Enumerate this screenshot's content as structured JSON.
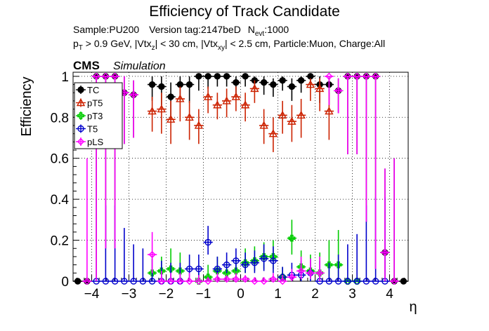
{
  "figure": {
    "title": "Efficiency of Track Candidate",
    "info_line1": {
      "sample": "Sample:PU200",
      "version": "Version tag:2147beD",
      "nevt_main": "N",
      "nevt_sub": "evt",
      "nevt_value": ":1000"
    },
    "info_line2": {
      "p": "p",
      "p_sub": "T",
      "pt_text": " > 0.9 GeV, |Vtx",
      "z_sub": "z",
      "z_text": "| < 30 cm, |Vtx",
      "xy_sub": "xy",
      "xy_text": "| < 2.5 cm, Particle:Muon, Charge:All"
    },
    "cms_label": "CMS",
    "simulation_label": "Simulation"
  },
  "chart_data": {
    "type": "scatter",
    "title": "Efficiency of Track Candidate",
    "xlabel": "η",
    "ylabel": "Efficiency",
    "xlim": [
      -4.5,
      4.5
    ],
    "ylim": [
      0,
      1.02
    ],
    "xticks": [
      -4,
      -3,
      -2,
      -1,
      0,
      1,
      2,
      3,
      4
    ],
    "xtick_labels": [
      "−4",
      "−3",
      "−2",
      "−1",
      "0",
      "1",
      "2",
      "3",
      "4"
    ],
    "yticks": [
      0,
      0.2,
      0.4,
      0.6,
      0.8,
      1
    ],
    "ytick_labels": [
      "0",
      "0.2",
      "0.4",
      "0.6",
      "0.8",
      "1"
    ],
    "grid": true,
    "legend_position": "top-left",
    "bin_half_width": 0.125,
    "series": [
      {
        "name": "TC",
        "color": "#000000",
        "marker": "circle-filled",
        "points": [
          {
            "x": -4.375,
            "y": 0.0,
            "lo": 0.0,
            "hi": 0.0
          },
          {
            "x": -4.125,
            "y": 0.0,
            "lo": 0.0,
            "hi": 0.0
          },
          {
            "x": -3.875,
            "y": 1.0,
            "lo": 0.0,
            "hi": 1.0
          },
          {
            "x": -3.625,
            "y": 1.0,
            "lo": 0.16,
            "hi": 1.0
          },
          {
            "x": -3.375,
            "y": 1.0,
            "lo": 0.16,
            "hi": 1.0
          },
          {
            "x": -3.125,
            "y": 0.92,
            "lo": 0.67,
            "hi": 1.0
          },
          {
            "x": -2.875,
            "y": 0.91,
            "lo": 0.7,
            "hi": 0.98
          },
          {
            "x": -2.375,
            "y": 0.96,
            "lo": 0.88,
            "hi": 1.0
          },
          {
            "x": -2.125,
            "y": 0.95,
            "lo": 0.86,
            "hi": 1.0
          },
          {
            "x": -1.875,
            "y": 0.9,
            "lo": 0.79,
            "hi": 0.97
          },
          {
            "x": -1.625,
            "y": 0.96,
            "lo": 0.88,
            "hi": 1.0
          },
          {
            "x": -1.375,
            "y": 0.96,
            "lo": 0.87,
            "hi": 1.0
          },
          {
            "x": -1.125,
            "y": 1.0,
            "lo": 0.93,
            "hi": 1.0
          },
          {
            "x": -0.875,
            "y": 1.0,
            "lo": 0.94,
            "hi": 1.0
          },
          {
            "x": -0.625,
            "y": 1.0,
            "lo": 0.95,
            "hi": 1.0
          },
          {
            "x": -0.375,
            "y": 1.0,
            "lo": 0.95,
            "hi": 1.0
          },
          {
            "x": -0.125,
            "y": 0.97,
            "lo": 0.91,
            "hi": 1.0
          },
          {
            "x": 0.125,
            "y": 1.0,
            "lo": 0.95,
            "hi": 1.0
          },
          {
            "x": 0.375,
            "y": 0.98,
            "lo": 0.93,
            "hi": 1.0
          },
          {
            "x": 0.625,
            "y": 0.97,
            "lo": 0.91,
            "hi": 1.0
          },
          {
            "x": 0.875,
            "y": 0.96,
            "lo": 0.9,
            "hi": 0.99
          },
          {
            "x": 1.125,
            "y": 0.98,
            "lo": 0.93,
            "hi": 1.0
          },
          {
            "x": 1.375,
            "y": 0.95,
            "lo": 0.88,
            "hi": 0.99
          },
          {
            "x": 1.625,
            "y": 0.98,
            "lo": 0.92,
            "hi": 1.0
          },
          {
            "x": 1.875,
            "y": 1.0,
            "lo": 0.94,
            "hi": 1.0
          },
          {
            "x": 2.125,
            "y": 0.96,
            "lo": 0.87,
            "hi": 1.0
          },
          {
            "x": 2.375,
            "y": 0.96,
            "lo": 0.86,
            "hi": 1.0
          },
          {
            "x": 2.625,
            "y": 0.93,
            "lo": 0.82,
            "hi": 0.99
          },
          {
            "x": 2.875,
            "y": 1.0,
            "lo": 0.62,
            "hi": 1.0
          },
          {
            "x": 3.125,
            "y": 1.0,
            "lo": 0.62,
            "hi": 1.0
          },
          {
            "x": 3.375,
            "y": 1.0,
            "lo": 0.29,
            "hi": 1.0
          },
          {
            "x": 3.625,
            "y": 1.0,
            "lo": 0.06,
            "hi": 1.0
          },
          {
            "x": 3.875,
            "y": 0.14,
            "lo": 0.0,
            "hi": 0.55
          },
          {
            "x": 4.125,
            "y": 0.0,
            "lo": 0.0,
            "hi": 0.6
          },
          {
            "x": 4.375,
            "y": 0.0,
            "lo": 0.0,
            "hi": 0.0
          }
        ]
      },
      {
        "name": "pT5",
        "color": "#cc2200",
        "marker": "triangle-open",
        "points": [
          {
            "x": -2.375,
            "y": 0.83,
            "lo": 0.73,
            "hi": 0.9
          },
          {
            "x": -2.125,
            "y": 0.84,
            "lo": 0.72,
            "hi": 0.92
          },
          {
            "x": -1.875,
            "y": 0.79,
            "lo": 0.67,
            "hi": 0.88
          },
          {
            "x": -1.625,
            "y": 0.89,
            "lo": 0.78,
            "hi": 0.95
          },
          {
            "x": -1.375,
            "y": 0.8,
            "lo": 0.69,
            "hi": 0.88
          },
          {
            "x": -1.125,
            "y": 0.76,
            "lo": 0.67,
            "hi": 0.84
          },
          {
            "x": -0.875,
            "y": 0.9,
            "lo": 0.82,
            "hi": 0.95
          },
          {
            "x": -0.625,
            "y": 0.86,
            "lo": 0.79,
            "hi": 0.92
          },
          {
            "x": -0.375,
            "y": 0.88,
            "lo": 0.8,
            "hi": 0.94
          },
          {
            "x": -0.125,
            "y": 0.9,
            "lo": 0.83,
            "hi": 0.95
          },
          {
            "x": 0.125,
            "y": 0.86,
            "lo": 0.78,
            "hi": 0.92
          },
          {
            "x": 0.375,
            "y": 0.94,
            "lo": 0.87,
            "hi": 0.98
          },
          {
            "x": 0.625,
            "y": 0.76,
            "lo": 0.67,
            "hi": 0.84
          },
          {
            "x": 0.875,
            "y": 0.72,
            "lo": 0.63,
            "hi": 0.8
          },
          {
            "x": 1.125,
            "y": 0.81,
            "lo": 0.72,
            "hi": 0.88
          },
          {
            "x": 1.375,
            "y": 0.78,
            "lo": 0.68,
            "hi": 0.86
          },
          {
            "x": 1.625,
            "y": 0.81,
            "lo": 0.7,
            "hi": 0.89
          },
          {
            "x": 1.875,
            "y": 0.96,
            "lo": 0.88,
            "hi": 0.99
          },
          {
            "x": 2.125,
            "y": 0.94,
            "lo": 0.83,
            "hi": 0.99
          },
          {
            "x": 2.375,
            "y": 0.83,
            "lo": 0.69,
            "hi": 0.92
          }
        ]
      },
      {
        "name": "pT3",
        "color": "#00cc00",
        "marker": "cross-open",
        "points": [
          {
            "x": -2.375,
            "y": 0.04,
            "lo": 0.0,
            "hi": 0.11
          },
          {
            "x": -2.125,
            "y": 0.05,
            "lo": 0.0,
            "hi": 0.12
          },
          {
            "x": -1.875,
            "y": 0.06,
            "lo": 0.01,
            "hi": 0.16
          },
          {
            "x": -1.625,
            "y": 0.05,
            "lo": 0.01,
            "hi": 0.14
          },
          {
            "x": -1.125,
            "y": 0.0,
            "lo": 0.0,
            "hi": 0.04
          },
          {
            "x": -0.875,
            "y": 0.02,
            "lo": 0.0,
            "hi": 0.08
          },
          {
            "x": -0.625,
            "y": 0.05,
            "lo": 0.01,
            "hi": 0.12
          },
          {
            "x": -0.375,
            "y": 0.04,
            "lo": 0.01,
            "hi": 0.1
          },
          {
            "x": -0.125,
            "y": 0.05,
            "lo": 0.01,
            "hi": 0.11
          },
          {
            "x": 0.125,
            "y": 0.09,
            "lo": 0.04,
            "hi": 0.16
          },
          {
            "x": 0.375,
            "y": 0.1,
            "lo": 0.05,
            "hi": 0.17
          },
          {
            "x": 0.625,
            "y": 0.12,
            "lo": 0.06,
            "hi": 0.19
          },
          {
            "x": 0.875,
            "y": 0.12,
            "lo": 0.06,
            "hi": 0.2
          },
          {
            "x": 1.125,
            "y": 0.02,
            "lo": 0.0,
            "hi": 0.07
          },
          {
            "x": 1.375,
            "y": 0.21,
            "lo": 0.13,
            "hi": 0.3
          },
          {
            "x": 1.625,
            "y": 0.07,
            "lo": 0.02,
            "hi": 0.15
          },
          {
            "x": 1.875,
            "y": 0.05,
            "lo": 0.01,
            "hi": 0.13
          },
          {
            "x": 2.125,
            "y": 0.04,
            "lo": 0.0,
            "hi": 0.14
          },
          {
            "x": 2.375,
            "y": 0.08,
            "lo": 0.01,
            "hi": 0.2
          },
          {
            "x": 2.625,
            "y": 0.08,
            "lo": 0.01,
            "hi": 0.25
          },
          {
            "x": 2.875,
            "y": 0.0,
            "lo": 0.0,
            "hi": 0.0
          },
          {
            "x": 3.125,
            "y": 0.0,
            "lo": 0.0,
            "hi": 0.0
          }
        ]
      },
      {
        "name": "T5",
        "color": "#0000cc",
        "marker": "circle-open",
        "points": [
          {
            "x": -3.875,
            "y": 0.0,
            "lo": 0.0,
            "hi": 0.0
          },
          {
            "x": -3.625,
            "y": 0.0,
            "lo": 0.0,
            "hi": 0.37
          },
          {
            "x": -3.375,
            "y": 0.0,
            "lo": 0.0,
            "hi": 0.37
          },
          {
            "x": -3.125,
            "y": 0.0,
            "lo": 0.0,
            "hi": 0.26
          },
          {
            "x": -2.875,
            "y": 0.0,
            "lo": 0.0,
            "hi": 0.18
          },
          {
            "x": -2.625,
            "y": 0.0,
            "lo": 0.0,
            "hi": 0.16
          },
          {
            "x": -2.375,
            "y": 0.0,
            "lo": 0.0,
            "hi": 0.11
          },
          {
            "x": -2.125,
            "y": 0.0,
            "lo": 0.0,
            "hi": 0.1
          },
          {
            "x": -1.875,
            "y": 0.0,
            "lo": 0.0,
            "hi": 0.09
          },
          {
            "x": -1.625,
            "y": 0.0,
            "lo": 0.0,
            "hi": 0.09
          },
          {
            "x": -1.375,
            "y": 0.06,
            "lo": 0.02,
            "hi": 0.13
          },
          {
            "x": -1.125,
            "y": 0.06,
            "lo": 0.02,
            "hi": 0.13
          },
          {
            "x": -0.875,
            "y": 0.19,
            "lo": 0.13,
            "hi": 0.27
          },
          {
            "x": -0.625,
            "y": 0.06,
            "lo": 0.02,
            "hi": 0.12
          },
          {
            "x": -0.375,
            "y": 0.08,
            "lo": 0.04,
            "hi": 0.14
          },
          {
            "x": -0.125,
            "y": 0.1,
            "lo": 0.05,
            "hi": 0.16
          },
          {
            "x": 0.125,
            "y": 0.08,
            "lo": 0.04,
            "hi": 0.14
          },
          {
            "x": 0.375,
            "y": 0.09,
            "lo": 0.04,
            "hi": 0.15
          },
          {
            "x": 0.625,
            "y": 0.11,
            "lo": 0.05,
            "hi": 0.18
          },
          {
            "x": 0.875,
            "y": 0.1,
            "lo": 0.04,
            "hi": 0.17
          },
          {
            "x": 1.125,
            "y": 0.02,
            "lo": 0.0,
            "hi": 0.07
          },
          {
            "x": 1.375,
            "y": 0.03,
            "lo": 0.0,
            "hi": 0.09
          },
          {
            "x": 1.625,
            "y": 0.03,
            "lo": 0.0,
            "hi": 0.1
          },
          {
            "x": 1.875,
            "y": 0.04,
            "lo": 0.0,
            "hi": 0.11
          },
          {
            "x": 2.125,
            "y": 0.0,
            "lo": 0.0,
            "hi": 0.1
          },
          {
            "x": 2.375,
            "y": 0.0,
            "lo": 0.0,
            "hi": 0.09
          },
          {
            "x": 2.625,
            "y": 0.0,
            "lo": 0.0,
            "hi": 0.13
          },
          {
            "x": 2.875,
            "y": 0.0,
            "lo": 0.0,
            "hi": 0.18
          },
          {
            "x": 3.125,
            "y": 0.0,
            "lo": 0.0,
            "hi": 0.23
          },
          {
            "x": 3.375,
            "y": 0.0,
            "lo": 0.0,
            "hi": 0.37
          },
          {
            "x": 3.625,
            "y": 0.0,
            "lo": 0.0,
            "hi": 0.41
          },
          {
            "x": 3.875,
            "y": 0.0,
            "lo": 0.0,
            "hi": 0.41
          }
        ]
      },
      {
        "name": "pLS",
        "color": "#ff00ff",
        "marker": "star-open",
        "points": [
          {
            "x": -4.125,
            "y": 0.0,
            "lo": 0.0,
            "hi": 0.6
          },
          {
            "x": -3.875,
            "y": 1.0,
            "lo": 0.0,
            "hi": 1.0
          },
          {
            "x": -3.625,
            "y": 1.0,
            "lo": 0.16,
            "hi": 1.0
          },
          {
            "x": -3.375,
            "y": 1.0,
            "lo": 0.16,
            "hi": 1.0
          },
          {
            "x": -3.125,
            "y": 0.92,
            "lo": 0.67,
            "hi": 1.0
          },
          {
            "x": -2.875,
            "y": 0.91,
            "lo": 0.7,
            "hi": 0.98
          },
          {
            "x": -2.375,
            "y": 0.13,
            "lo": 0.04,
            "hi": 0.24
          },
          {
            "x": -2.125,
            "y": 0.0,
            "lo": 0.0,
            "hi": 0.05
          },
          {
            "x": -1.875,
            "y": 0.0,
            "lo": 0.0,
            "hi": 0.04
          },
          {
            "x": -1.625,
            "y": 0.0,
            "lo": 0.0,
            "hi": 0.04
          },
          {
            "x": -1.375,
            "y": 0.0,
            "lo": 0.0,
            "hi": 0.04
          },
          {
            "x": -1.125,
            "y": 0.0,
            "lo": 0.0,
            "hi": 0.03
          },
          {
            "x": -0.875,
            "y": 0.0,
            "lo": 0.0,
            "hi": 0.02
          },
          {
            "x": -0.625,
            "y": 0.01,
            "lo": 0.0,
            "hi": 0.04
          },
          {
            "x": -0.375,
            "y": 0.01,
            "lo": 0.0,
            "hi": 0.03
          },
          {
            "x": -0.125,
            "y": 0.01,
            "lo": 0.0,
            "hi": 0.04
          },
          {
            "x": 0.125,
            "y": 0.01,
            "lo": 0.0,
            "hi": 0.03
          },
          {
            "x": 0.375,
            "y": 0.0,
            "lo": 0.0,
            "hi": 0.02
          },
          {
            "x": 0.625,
            "y": 0.0,
            "lo": 0.0,
            "hi": 0.02
          },
          {
            "x": 0.875,
            "y": 0.01,
            "lo": 0.0,
            "hi": 0.04
          },
          {
            "x": 1.125,
            "y": 0.0,
            "lo": 0.0,
            "hi": 0.03
          },
          {
            "x": 1.375,
            "y": 0.02,
            "lo": 0.0,
            "hi": 0.06
          },
          {
            "x": 1.625,
            "y": 0.05,
            "lo": 0.01,
            "hi": 0.12
          },
          {
            "x": 1.875,
            "y": 0.04,
            "lo": 0.01,
            "hi": 0.11
          },
          {
            "x": 2.125,
            "y": 0.04,
            "lo": 0.0,
            "hi": 0.12
          },
          {
            "x": 2.375,
            "y": 1.0,
            "lo": 0.86,
            "hi": 1.0
          },
          {
            "x": 2.625,
            "y": 0.93,
            "lo": 0.82,
            "hi": 0.99
          },
          {
            "x": 2.875,
            "y": 1.0,
            "lo": 0.62,
            "hi": 1.0
          },
          {
            "x": 3.125,
            "y": 1.0,
            "lo": 0.62,
            "hi": 1.0
          },
          {
            "x": 3.375,
            "y": 1.0,
            "lo": 0.29,
            "hi": 1.0
          },
          {
            "x": 3.625,
            "y": 1.0,
            "lo": 0.06,
            "hi": 1.0
          },
          {
            "x": 3.875,
            "y": 0.14,
            "lo": 0.0,
            "hi": 0.55
          },
          {
            "x": 4.125,
            "y": 0.0,
            "lo": 0.0,
            "hi": 0.6
          }
        ]
      }
    ]
  }
}
